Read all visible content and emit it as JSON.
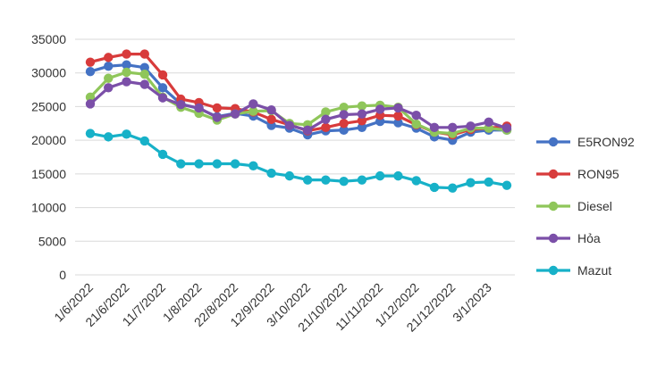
{
  "chart_data": {
    "type": "line",
    "title": "",
    "xlabel": "",
    "ylabel": "",
    "ylim": [
      0,
      35000
    ],
    "yticks": [
      "0",
      "5000",
      "10000",
      "15000",
      "20000",
      "25000",
      "30000",
      "35000"
    ],
    "grid": true,
    "legend": "right",
    "categories": [
      "1/6/2022",
      "",
      "21/6/2022",
      "",
      "11/7/2022",
      "",
      "1/8/2022",
      "",
      "22/8/2022",
      "",
      "12/9/2022",
      "",
      "3/10/2022",
      "",
      "21/10/2022",
      "",
      "11/11/2022",
      "",
      "1/12/2022",
      "",
      "21/12/2022",
      "",
      "3/1/2023",
      ""
    ],
    "series": [
      {
        "name": "E5RON92",
        "color": "#4472c4",
        "values": [
          30200,
          31000,
          31200,
          30800,
          27800,
          25400,
          24700,
          23500,
          24000,
          23600,
          22200,
          21800,
          20800,
          21400,
          21500,
          21900,
          22800,
          22600,
          21800,
          20500,
          20000,
          21200,
          21500,
          21500
        ]
      },
      {
        "name": "RON95",
        "color": "#d83b3b",
        "values": [
          31600,
          32300,
          32800,
          32800,
          29700,
          26100,
          25600,
          24800,
          24700,
          24200,
          23100,
          22300,
          21400,
          21900,
          22500,
          22900,
          23700,
          23600,
          22300,
          21200,
          20800,
          21600,
          21800,
          22100
        ]
      },
      {
        "name": "Diesel",
        "color": "#8fc65a",
        "values": [
          26400,
          29200,
          30100,
          29800,
          26400,
          24900,
          24000,
          23000,
          23900,
          24300,
          24400,
          22500,
          22300,
          24200,
          24900,
          25100,
          25200,
          24900,
          22400,
          21200,
          21000,
          21800,
          21800,
          21500
        ]
      },
      {
        "name": "Hỏa",
        "color": "#7b4fa8",
        "values": [
          25400,
          27800,
          28700,
          28300,
          26300,
          25300,
          24800,
          23400,
          23900,
          25400,
          24500,
          22200,
          21500,
          23100,
          23800,
          23900,
          24600,
          24800,
          23700,
          21900,
          21900,
          22100,
          22700,
          21800
        ]
      },
      {
        "name": "Mazut",
        "color": "#17b1c8",
        "values": [
          21000,
          20500,
          20900,
          19900,
          17900,
          16500,
          16500,
          16500,
          16500,
          16200,
          15100,
          14700,
          14100,
          14100,
          13900,
          14100,
          14700,
          14700,
          14000,
          13000,
          12900,
          13700,
          13800,
          13300
        ]
      }
    ]
  }
}
